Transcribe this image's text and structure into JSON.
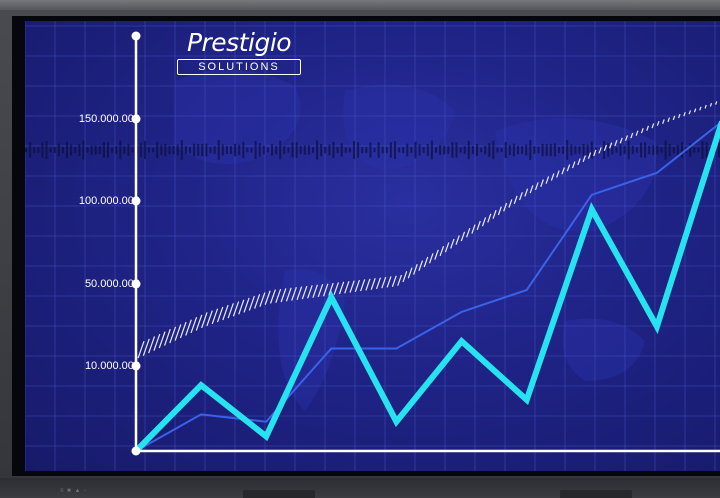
{
  "logo": {
    "wordmark": "Prestigio",
    "tagline": "SOLUTIONS"
  },
  "bottom_label": "≡ ■ ▲ ◦",
  "colors": {
    "background": "#1f2386",
    "axis": "#ffffff",
    "primary_line": "#27e3f0",
    "secondary_line": "#3a62e8",
    "trend_band": "#ffffff"
  },
  "chart_data": {
    "type": "line",
    "yticks": [
      "150.000.000",
      "100.000.000",
      "50.000.000",
      "10.000.000"
    ],
    "grid": true,
    "series": [
      {
        "role": "primary",
        "values": [
          0,
          9,
          2,
          21,
          4,
          15,
          7,
          33,
          17,
          45
        ]
      },
      {
        "role": "secondary",
        "values": [
          0,
          5,
          4,
          14,
          14,
          19,
          22,
          35,
          38,
          45
        ]
      },
      {
        "role": "trend-band",
        "values": [
          15,
          19,
          22,
          23,
          24,
          30,
          36,
          41,
          45,
          48
        ]
      }
    ]
  }
}
